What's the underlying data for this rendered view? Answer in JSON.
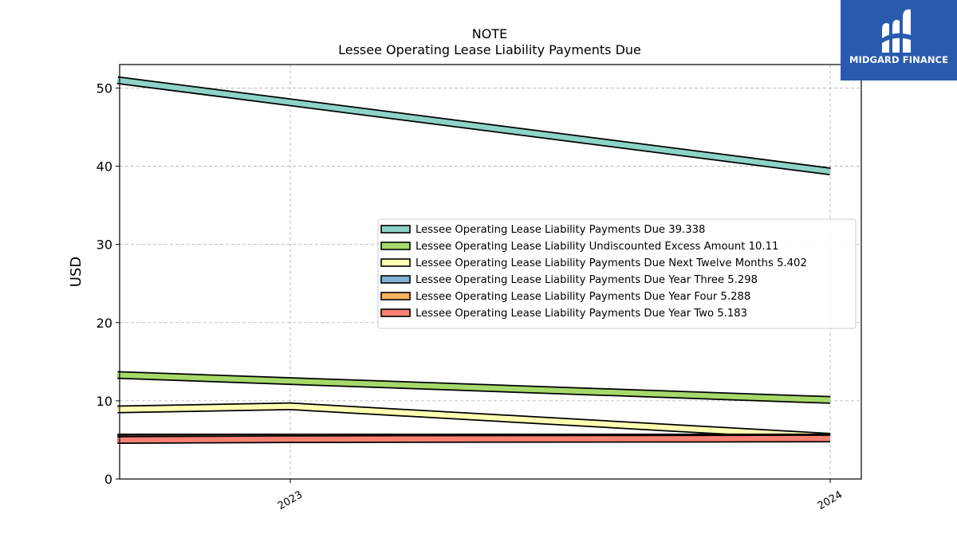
{
  "brand": {
    "name": "MIDGARD FINANCE",
    "logo_icon": "midgard-m-logo-icon",
    "background_color": "#2a5aad"
  },
  "chart_data": {
    "type": "line",
    "title": "NOTE",
    "subtitle": "Lessee Operating Lease Liability Payments Due",
    "xlabel": "",
    "ylabel": "USD",
    "x": [
      "2023",
      "2024"
    ],
    "x_positions": [
      2022.68,
      2023,
      2024,
      2024
    ],
    "ylim": [
      0,
      53
    ],
    "yticks": [
      0,
      10,
      20,
      30,
      40,
      50
    ],
    "grid": true,
    "legend_position": "center-right",
    "series": [
      {
        "name": "Lessee Operating Lease Liability Payments Due",
        "latest_label": "39.338",
        "color": "#8dd3c7",
        "points": [
          [
            2022.68,
            51.0
          ],
          [
            2024,
            39.338
          ]
        ]
      },
      {
        "name": "Lessee Operating Lease Liability Undiscounted Excess Amount",
        "latest_label": "10.11",
        "color": "#a6d96a",
        "points": [
          [
            2022.68,
            13.3
          ],
          [
            2024,
            10.11
          ]
        ]
      },
      {
        "name": "Lessee Operating Lease Liability Payments Due Next Twelve Months",
        "latest_label": "5.402",
        "color": "#ffffb3",
        "points": [
          [
            2022.68,
            8.9
          ],
          [
            2023,
            9.3
          ],
          [
            2024,
            5.402
          ]
        ]
      },
      {
        "name": "Lessee Operating Lease Liability Payments Due Year Three",
        "latest_label": "5.298",
        "color": "#80b1d3",
        "points": [
          [
            2022.68,
            5.3
          ],
          [
            2023,
            5.3
          ],
          [
            2024,
            5.298
          ]
        ]
      },
      {
        "name": "Lessee Operating Lease Liability Payments Due Year Four",
        "latest_label": "5.288",
        "color": "#fdb462",
        "points": [
          [
            2022.68,
            5.2
          ],
          [
            2023,
            5.3
          ],
          [
            2024,
            5.288
          ]
        ]
      },
      {
        "name": "Lessee Operating Lease Liability Payments Due Year Two",
        "latest_label": "5.183",
        "color": "#fb8072",
        "points": [
          [
            2022.68,
            5.0
          ],
          [
            2023,
            5.1
          ],
          [
            2024,
            5.183
          ]
        ]
      }
    ]
  }
}
